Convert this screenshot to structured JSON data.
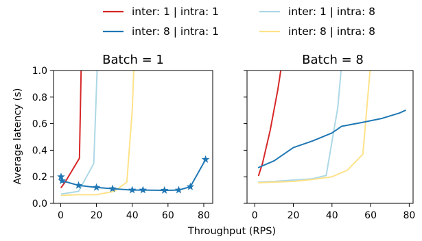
{
  "chart_data": {
    "type": "line",
    "xlabel": "Throughput (RPS)",
    "ylabel": "Average latency (s)",
    "ylim": [
      0.0,
      1.0
    ],
    "yticks": [
      "0.0",
      "0.2",
      "0.4",
      "0.6",
      "0.8",
      "1.0"
    ],
    "legend": {
      "placement": "top-center",
      "columns": 2,
      "entries": [
        {
          "label": "inter: 1 | intra: 1",
          "color": "#d62728"
        },
        {
          "label": "inter: 1 | intra: 8",
          "color": "#add8e6"
        },
        {
          "label": "inter: 8 | intra: 1",
          "color": "#1f77b4"
        },
        {
          "label": "inter: 8 | intra: 8",
          "color": "#ffe28a"
        }
      ]
    },
    "panels": [
      {
        "title": "Batch = 1",
        "xlim": [
          -4,
          85
        ],
        "xticks": [
          "0",
          "20",
          "40",
          "60",
          "80"
        ],
        "series": [
          {
            "name": "inter: 1 | intra: 1",
            "color": "#d62728",
            "marker": "none",
            "points": [
              [
                0.3,
                0.12
              ],
              [
                2.5,
                0.16
              ],
              [
                10.5,
                0.34
              ],
              [
                11.5,
                1.05
              ]
            ]
          },
          {
            "name": "inter: 1 | intra: 8",
            "color": "#add8e6",
            "marker": "none",
            "points": [
              [
                0.5,
                0.07
              ],
              [
                5,
                0.08
              ],
              [
                10,
                0.09
              ],
              [
                18.5,
                0.3
              ],
              [
                20.5,
                1.05
              ]
            ]
          },
          {
            "name": "inter: 8 | intra: 8",
            "color": "#ffe28a",
            "marker": "none",
            "points": [
              [
                0.5,
                0.06
              ],
              [
                10,
                0.065
              ],
              [
                20,
                0.065
              ],
              [
                30,
                0.09
              ],
              [
                37,
                0.16
              ],
              [
                40,
                0.7
              ],
              [
                41,
                1.05
              ]
            ]
          },
          {
            "name": "inter: 8 | intra: 1",
            "color": "#1f77b4",
            "marker": "star",
            "points": [
              [
                0.2,
                0.2
              ],
              [
                0.8,
                0.17
              ],
              [
                10,
                0.135
              ],
              [
                20,
                0.12
              ],
              [
                29,
                0.11
              ],
              [
                40,
                0.1
              ],
              [
                46,
                0.1
              ],
              [
                58,
                0.098
              ],
              [
                66,
                0.1
              ],
              [
                72.5,
                0.125
              ],
              [
                81,
                0.33
              ]
            ]
          }
        ]
      },
      {
        "title": "Batch = 8",
        "xlim": [
          -4,
          82
        ],
        "xticks": [
          "0",
          "20",
          "40",
          "60",
          "80"
        ],
        "series": [
          {
            "name": "inter: 1 | intra: 1",
            "color": "#d62728",
            "marker": "none",
            "points": [
              [
                2,
                0.21
              ],
              [
                4,
                0.3
              ],
              [
                8,
                0.55
              ],
              [
                12,
                0.86
              ],
              [
                14,
                1.05
              ]
            ]
          },
          {
            "name": "inter: 1 | intra: 8",
            "color": "#add8e6",
            "marker": "none",
            "points": [
              [
                2,
                0.16
              ],
              [
                10,
                0.165
              ],
              [
                20,
                0.175
              ],
              [
                30,
                0.185
              ],
              [
                37,
                0.21
              ],
              [
                43,
                0.72
              ],
              [
                45,
                1.05
              ]
            ]
          },
          {
            "name": "inter: 8 | intra: 8",
            "color": "#ffe28a",
            "marker": "none",
            "points": [
              [
                2,
                0.155
              ],
              [
                10,
                0.16
              ],
              [
                20,
                0.165
              ],
              [
                30,
                0.18
              ],
              [
                40,
                0.2
              ],
              [
                48,
                0.25
              ],
              [
                56,
                0.37
              ],
              [
                60,
                1.05
              ]
            ]
          },
          {
            "name": "inter: 8 | intra: 1",
            "color": "#1f77b4",
            "marker": "none",
            "points": [
              [
                2,
                0.27
              ],
              [
                10,
                0.32
              ],
              [
                20,
                0.42
              ],
              [
                30,
                0.47
              ],
              [
                40,
                0.53
              ],
              [
                45,
                0.58
              ],
              [
                56,
                0.61
              ],
              [
                66,
                0.64
              ],
              [
                75,
                0.68
              ],
              [
                78,
                0.7
              ]
            ]
          }
        ]
      }
    ]
  }
}
